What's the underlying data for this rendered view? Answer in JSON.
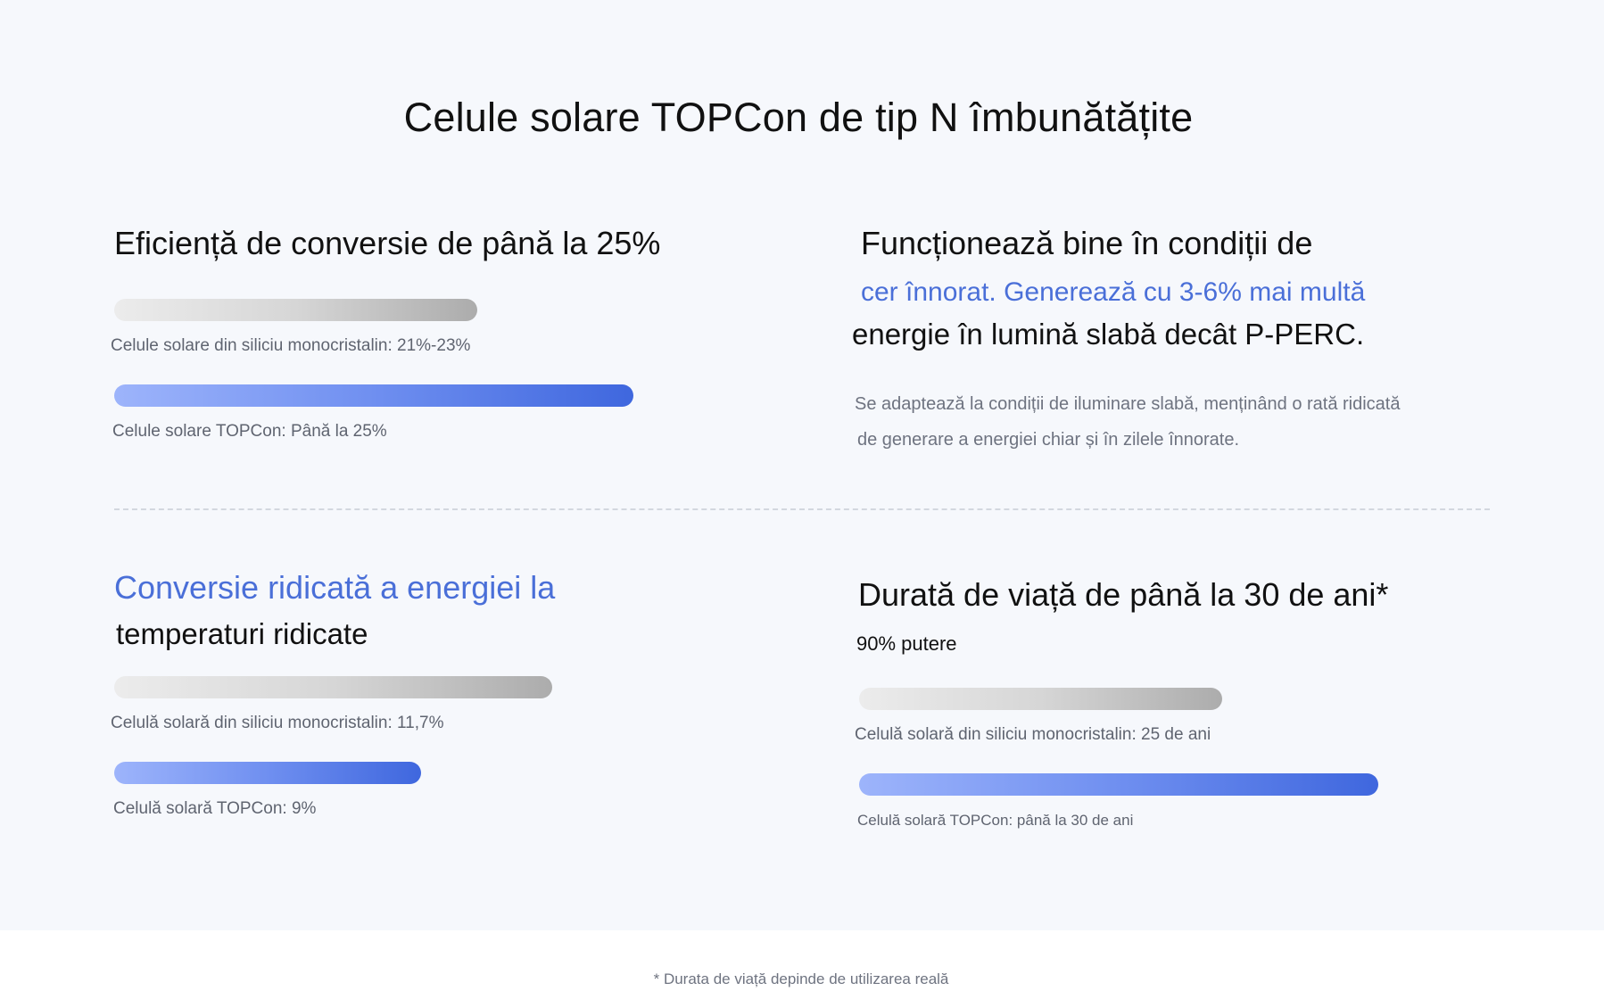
{
  "title": "Celule solare TOPCon de tip N îmbunătățite",
  "blocks": {
    "efficiency": {
      "heading": "Eficiență de conversie de până la 25%",
      "bars": [
        {
          "label": "Celule solare din siliciu monocristalin: 21%-23%",
          "level": 0.7,
          "color": "gray"
        },
        {
          "label": "Celule solare TOPCon: Până la 25%",
          "level": 1.0,
          "color": "blue"
        }
      ]
    },
    "low_light": {
      "heading_line1": "Funcționează bine în condiții de",
      "heading_line2": "cer înnorat. Generează cu 3-6% mai multă",
      "heading_line3": "energie în lumină slabă decât P-PERC.",
      "description_line1": "Se adaptează la condiții de iluminare slabă, menținând o rată ridicată",
      "description_line2": "de generare a energiei chiar și în zilele înnorate."
    },
    "temperature": {
      "heading_line1": "Conversie ridicată a energiei la",
      "heading_line2": "temperaturi ridicate",
      "bars": [
        {
          "label": "Celulă solară din siliciu monocristalin: 11,7%",
          "level": 1.0,
          "color": "gray"
        },
        {
          "label": "Celulă solară TOPCon: 9%",
          "level": 0.7,
          "color": "blue"
        }
      ]
    },
    "lifetime": {
      "heading": "Durată de viață de până la 30 de ani*",
      "subheading": "90% putere",
      "bars": [
        {
          "label": "Celulă solară din siliciu monocristalin: 25 de ani",
          "level": 0.7,
          "color": "gray"
        },
        {
          "label": "Celulă solară TOPCon: până la 30 de ani",
          "level": 1.0,
          "color": "blue"
        }
      ]
    }
  },
  "footnote": "* Durata de viață depinde de utilizarea reală",
  "colors": {
    "accent_blue": "#4a6fd8",
    "panel_background": "#f6f8fc",
    "bar_gray_end": "#acacac",
    "bar_blue_end": "#3f67de"
  }
}
